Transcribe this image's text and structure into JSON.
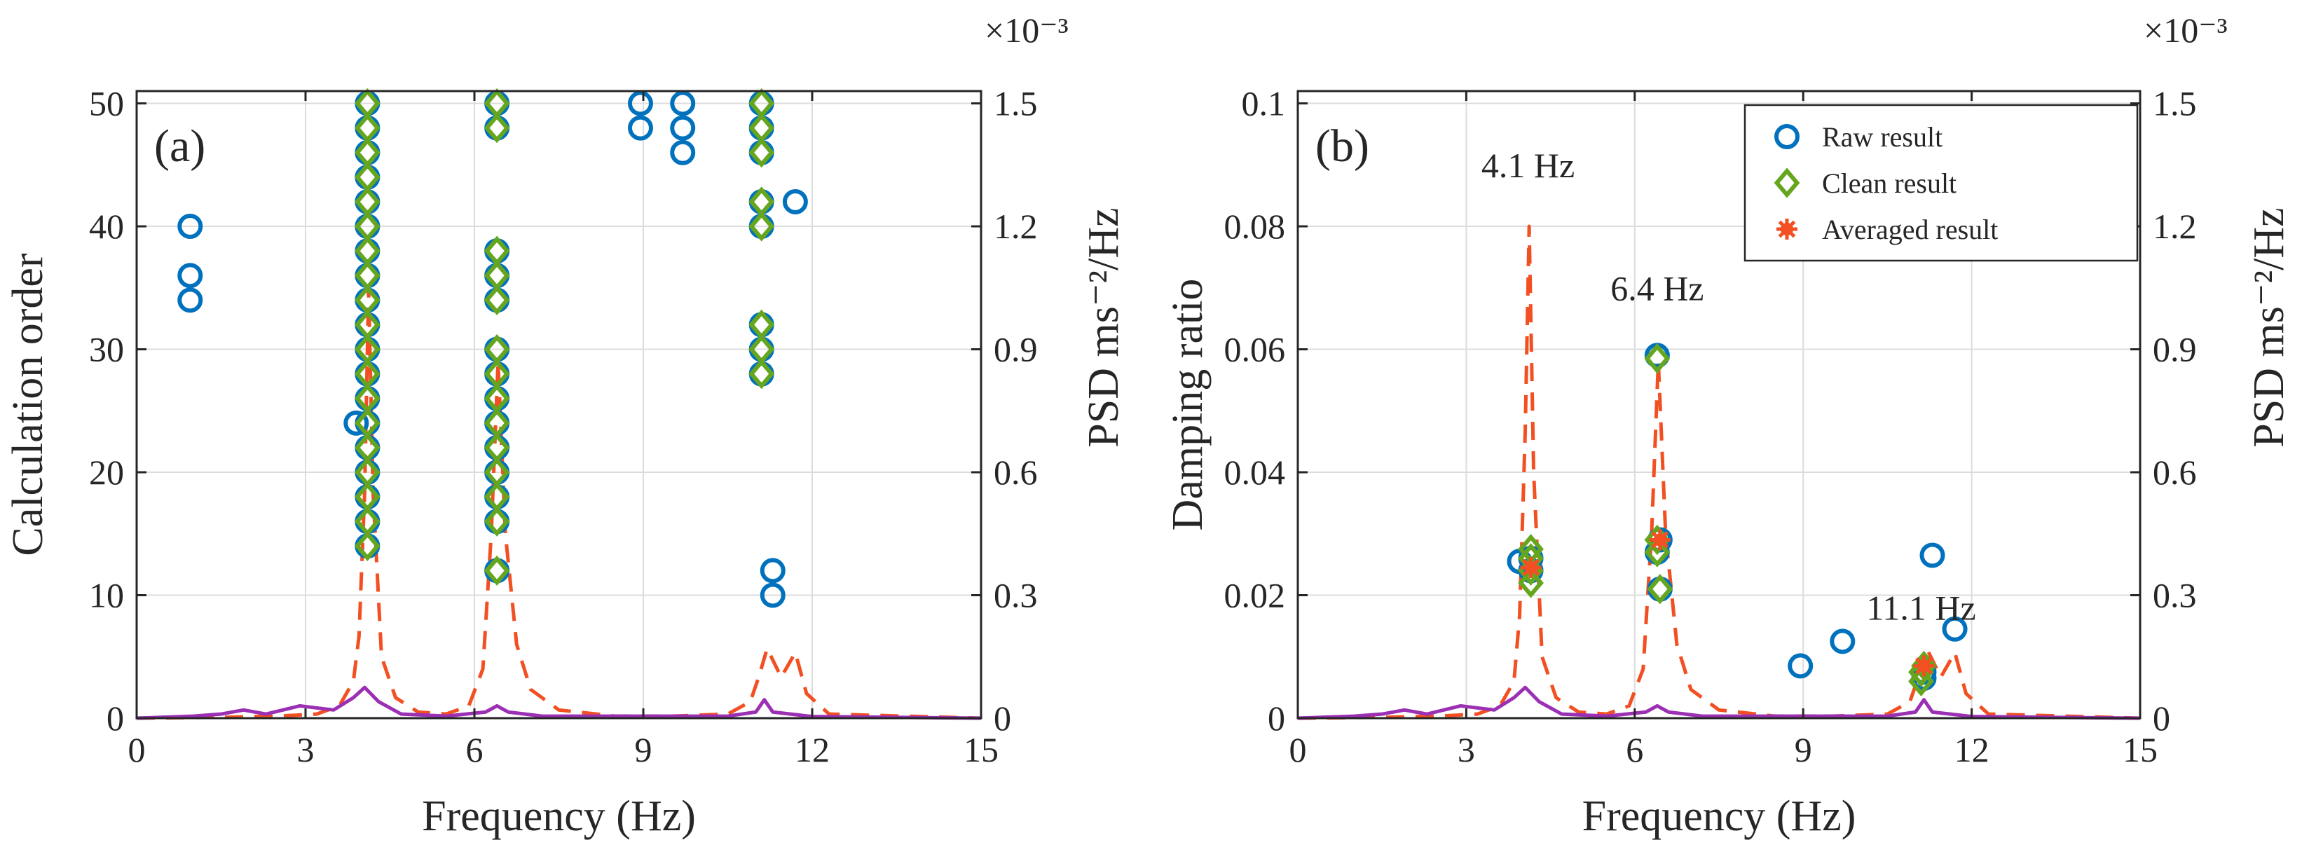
{
  "colors": {
    "raw": "#0072BD",
    "clean": "#66A61E",
    "averaged": "#F25022",
    "psd_dashed": "#F25022",
    "psd_solid": "#9B30B4"
  },
  "chart_data": [
    {
      "type": "scatter",
      "panel_label": "(a)",
      "xlabel": "Frequency (Hz)",
      "ylabel": "Calculation order",
      "ylabel_right": "PSD ms⁻²/Hz",
      "right_axis_exponent": "×10⁻³",
      "xlim": [
        0,
        15
      ],
      "ylim": [
        0,
        51
      ],
      "ylim_right": [
        0,
        1.53
      ],
      "xticks": [
        "0",
        "3",
        "6",
        "9",
        "12",
        "15"
      ],
      "xtick_values": [
        0,
        3,
        6,
        9,
        12,
        15
      ],
      "yticks": [
        "0",
        "10",
        "20",
        "30",
        "40",
        "50"
      ],
      "ytick_values": [
        0,
        10,
        20,
        30,
        40,
        50
      ],
      "yticks_right": [
        "0",
        "0.3",
        "0.6",
        "0.9",
        "1.2",
        "1.5"
      ],
      "ytick_right_values": [
        0,
        0.3,
        0.6,
        0.9,
        1.2,
        1.5
      ],
      "grid": true,
      "series": [
        {
          "name": "Raw result",
          "marker": "circle",
          "points": [
            [
              0.95,
              34
            ],
            [
              0.95,
              36
            ],
            [
              0.95,
              40
            ],
            [
              3.9,
              24
            ],
            [
              4.1,
              14
            ],
            [
              4.1,
              16
            ],
            [
              4.1,
              18
            ],
            [
              4.1,
              20
            ],
            [
              4.1,
              22
            ],
            [
              4.1,
              24
            ],
            [
              4.1,
              26
            ],
            [
              4.1,
              28
            ],
            [
              4.1,
              30
            ],
            [
              4.1,
              32
            ],
            [
              4.1,
              34
            ],
            [
              4.1,
              36
            ],
            [
              4.1,
              38
            ],
            [
              4.1,
              40
            ],
            [
              4.1,
              42
            ],
            [
              4.1,
              44
            ],
            [
              4.1,
              46
            ],
            [
              4.1,
              48
            ],
            [
              4.1,
              50
            ],
            [
              6.4,
              12
            ],
            [
              6.4,
              16
            ],
            [
              6.4,
              18
            ],
            [
              6.4,
              20
            ],
            [
              6.4,
              22
            ],
            [
              6.4,
              24
            ],
            [
              6.4,
              26
            ],
            [
              6.4,
              28
            ],
            [
              6.4,
              30
            ],
            [
              6.4,
              34
            ],
            [
              6.4,
              36
            ],
            [
              6.4,
              38
            ],
            [
              6.4,
              48
            ],
            [
              6.4,
              50
            ],
            [
              8.95,
              48
            ],
            [
              8.95,
              50
            ],
            [
              9.7,
              46
            ],
            [
              9.7,
              48
            ],
            [
              9.7,
              50
            ],
            [
              11.1,
              28
            ],
            [
              11.1,
              30
            ],
            [
              11.1,
              32
            ],
            [
              11.1,
              40
            ],
            [
              11.1,
              42
            ],
            [
              11.1,
              46
            ],
            [
              11.1,
              48
            ],
            [
              11.1,
              50
            ],
            [
              11.3,
              10
            ],
            [
              11.3,
              12
            ],
            [
              11.7,
              42
            ]
          ]
        },
        {
          "name": "Clean result",
          "marker": "diamond",
          "points": [
            [
              4.1,
              14
            ],
            [
              4.1,
              16
            ],
            [
              4.1,
              18
            ],
            [
              4.1,
              20
            ],
            [
              4.1,
              22
            ],
            [
              4.1,
              24
            ],
            [
              4.1,
              26
            ],
            [
              4.1,
              28
            ],
            [
              4.1,
              30
            ],
            [
              4.1,
              32
            ],
            [
              4.1,
              34
            ],
            [
              4.1,
              36
            ],
            [
              4.1,
              38
            ],
            [
              4.1,
              40
            ],
            [
              4.1,
              42
            ],
            [
              4.1,
              44
            ],
            [
              4.1,
              46
            ],
            [
              4.1,
              48
            ],
            [
              4.1,
              50
            ],
            [
              6.4,
              12
            ],
            [
              6.4,
              16
            ],
            [
              6.4,
              18
            ],
            [
              6.4,
              20
            ],
            [
              6.4,
              22
            ],
            [
              6.4,
              24
            ],
            [
              6.4,
              26
            ],
            [
              6.4,
              28
            ],
            [
              6.4,
              30
            ],
            [
              6.4,
              34
            ],
            [
              6.4,
              36
            ],
            [
              6.4,
              38
            ],
            [
              6.4,
              48
            ],
            [
              6.4,
              50
            ],
            [
              11.1,
              28
            ],
            [
              11.1,
              30
            ],
            [
              11.1,
              32
            ],
            [
              11.1,
              40
            ],
            [
              11.1,
              42
            ],
            [
              11.1,
              46
            ],
            [
              11.1,
              48
            ],
            [
              11.1,
              50
            ]
          ]
        },
        {
          "name": "PSD (dashed)",
          "style": "dashed-line",
          "axis": "right",
          "points": [
            [
              0,
              0
            ],
            [
              1.5,
              0.002
            ],
            [
              2.5,
              0.005
            ],
            [
              3.2,
              0.01
            ],
            [
              3.6,
              0.03
            ],
            [
              3.85,
              0.09
            ],
            [
              3.95,
              0.2
            ],
            [
              4.05,
              0.55
            ],
            [
              4.12,
              1.05
            ],
            [
              4.2,
              0.55
            ],
            [
              4.35,
              0.15
            ],
            [
              4.6,
              0.05
            ],
            [
              5.0,
              0.015
            ],
            [
              5.5,
              0.01
            ],
            [
              5.9,
              0.03
            ],
            [
              6.15,
              0.12
            ],
            [
              6.3,
              0.45
            ],
            [
              6.42,
              0.87
            ],
            [
              6.55,
              0.45
            ],
            [
              6.75,
              0.18
            ],
            [
              7.0,
              0.07
            ],
            [
              7.5,
              0.02
            ],
            [
              8.5,
              0.005
            ],
            [
              9.5,
              0.005
            ],
            [
              10.5,
              0.01
            ],
            [
              10.9,
              0.04
            ],
            [
              11.05,
              0.1
            ],
            [
              11.2,
              0.17
            ],
            [
              11.45,
              0.1
            ],
            [
              11.7,
              0.16
            ],
            [
              11.9,
              0.06
            ],
            [
              12.3,
              0.01
            ],
            [
              15,
              0
            ]
          ]
        },
        {
          "name": "PSD (solid)",
          "style": "solid-line",
          "axis": "right",
          "points": [
            [
              0,
              0
            ],
            [
              1.0,
              0.005
            ],
            [
              1.5,
              0.01
            ],
            [
              1.9,
              0.02
            ],
            [
              2.3,
              0.01
            ],
            [
              2.9,
              0.03
            ],
            [
              3.5,
              0.02
            ],
            [
              3.85,
              0.05
            ],
            [
              4.05,
              0.075
            ],
            [
              4.3,
              0.04
            ],
            [
              4.7,
              0.01
            ],
            [
              5.5,
              0.005
            ],
            [
              6.2,
              0.015
            ],
            [
              6.4,
              0.03
            ],
            [
              6.6,
              0.015
            ],
            [
              7.2,
              0.005
            ],
            [
              9.0,
              0.005
            ],
            [
              10.5,
              0.005
            ],
            [
              11.0,
              0.015
            ],
            [
              11.15,
              0.045
            ],
            [
              11.3,
              0.015
            ],
            [
              12,
              0.004
            ],
            [
              15,
              0
            ]
          ]
        }
      ]
    },
    {
      "type": "scatter",
      "panel_label": "(b)",
      "xlabel": "Frequency (Hz)",
      "ylabel": "Damping ratio",
      "ylabel_right": "PSD ms⁻²/Hz",
      "right_axis_exponent": "×10⁻³",
      "xlim": [
        0,
        15
      ],
      "ylim": [
        0,
        0.102
      ],
      "ylim_right": [
        0,
        1.53
      ],
      "xticks": [
        "0",
        "3",
        "6",
        "9",
        "12",
        "15"
      ],
      "xtick_values": [
        0,
        3,
        6,
        9,
        12,
        15
      ],
      "yticks": [
        "0",
        "0.02",
        "0.04",
        "0.06",
        "0.08",
        "0.1"
      ],
      "ytick_values": [
        0,
        0.02,
        0.04,
        0.06,
        0.08,
        0.1
      ],
      "yticks_right": [
        "0",
        "0.3",
        "0.6",
        "0.9",
        "1.2",
        "1.5"
      ],
      "ytick_right_values": [
        0,
        0.3,
        0.6,
        0.9,
        1.2,
        1.5
      ],
      "grid": true,
      "legend": [
        "Raw result",
        "Clean result",
        "Averaged result"
      ],
      "legend_placement": "top-right",
      "annotations": [
        {
          "text": "4.1 Hz",
          "x": 4.1,
          "y": 0.088
        },
        {
          "text": "6.4 Hz",
          "x": 6.4,
          "y": 0.068
        },
        {
          "text": "11.1 Hz",
          "x": 11.1,
          "y": 0.016
        }
      ],
      "series": [
        {
          "name": "Raw result",
          "marker": "circle",
          "points": [
            [
              3.95,
              0.0255
            ],
            [
              4.15,
              0.024
            ],
            [
              4.15,
              0.026
            ],
            [
              6.4,
              0.059
            ],
            [
              6.4,
              0.027
            ],
            [
              6.45,
              0.029
            ],
            [
              6.45,
              0.021
            ],
            [
              8.95,
              0.0085
            ],
            [
              9.7,
              0.0125
            ],
            [
              11.15,
              0.0065
            ],
            [
              11.15,
              0.0075
            ],
            [
              11.3,
              0.0265
            ],
            [
              11.7,
              0.0145
            ]
          ]
        },
        {
          "name": "Clean result",
          "marker": "diamond",
          "points": [
            [
              4.15,
              0.022
            ],
            [
              4.15,
              0.024
            ],
            [
              4.15,
              0.026
            ],
            [
              4.15,
              0.0275
            ],
            [
              6.4,
              0.0585
            ],
            [
              6.4,
              0.027
            ],
            [
              6.4,
              0.029
            ],
            [
              6.45,
              0.021
            ],
            [
              11.1,
              0.006
            ],
            [
              11.1,
              0.0075
            ],
            [
              11.15,
              0.0085
            ]
          ]
        },
        {
          "name": "Averaged result",
          "marker": "asterisk",
          "points": [
            [
              4.15,
              0.0245
            ],
            [
              6.45,
              0.029
            ],
            [
              11.15,
              0.0085
            ]
          ]
        },
        {
          "name": "PSD (dashed)",
          "style": "dashed-line",
          "axis": "right",
          "points": [
            [
              0,
              0
            ],
            [
              1.5,
              0.002
            ],
            [
              2.5,
              0.005
            ],
            [
              3.2,
              0.01
            ],
            [
              3.6,
              0.03
            ],
            [
              3.85,
              0.09
            ],
            [
              3.95,
              0.25
            ],
            [
              4.05,
              0.7
            ],
            [
              4.12,
              1.2
            ],
            [
              4.2,
              0.6
            ],
            [
              4.35,
              0.15
            ],
            [
              4.6,
              0.05
            ],
            [
              5.0,
              0.015
            ],
            [
              5.5,
              0.01
            ],
            [
              5.9,
              0.03
            ],
            [
              6.15,
              0.12
            ],
            [
              6.3,
              0.45
            ],
            [
              6.42,
              0.87
            ],
            [
              6.55,
              0.45
            ],
            [
              6.75,
              0.18
            ],
            [
              7.0,
              0.07
            ],
            [
              7.5,
              0.02
            ],
            [
              8.5,
              0.005
            ],
            [
              9.5,
              0.005
            ],
            [
              10.5,
              0.01
            ],
            [
              10.9,
              0.04
            ],
            [
              11.05,
              0.1
            ],
            [
              11.2,
              0.17
            ],
            [
              11.45,
              0.1
            ],
            [
              11.7,
              0.16
            ],
            [
              11.9,
              0.06
            ],
            [
              12.3,
              0.01
            ],
            [
              15,
              0
            ]
          ]
        },
        {
          "name": "PSD (solid)",
          "style": "solid-line",
          "axis": "right",
          "points": [
            [
              0,
              0
            ],
            [
              1.0,
              0.005
            ],
            [
              1.5,
              0.01
            ],
            [
              1.9,
              0.02
            ],
            [
              2.3,
              0.01
            ],
            [
              2.9,
              0.03
            ],
            [
              3.5,
              0.02
            ],
            [
              3.85,
              0.05
            ],
            [
              4.05,
              0.075
            ],
            [
              4.3,
              0.04
            ],
            [
              4.7,
              0.01
            ],
            [
              5.5,
              0.005
            ],
            [
              6.2,
              0.015
            ],
            [
              6.4,
              0.03
            ],
            [
              6.6,
              0.015
            ],
            [
              7.2,
              0.005
            ],
            [
              9.0,
              0.005
            ],
            [
              10.5,
              0.005
            ],
            [
              11.0,
              0.015
            ],
            [
              11.15,
              0.045
            ],
            [
              11.3,
              0.015
            ],
            [
              12,
              0.004
            ],
            [
              15,
              0
            ]
          ]
        }
      ]
    }
  ]
}
